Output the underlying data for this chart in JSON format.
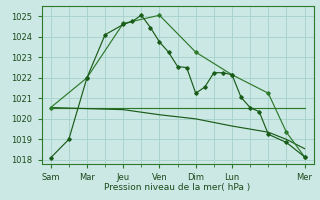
{
  "xlabel": "Pression niveau de la mer( hPa )",
  "bg_color": "#cce8e4",
  "grid_color": "#aad4ce",
  "line_dark": "#1a5c1a",
  "line_mid": "#2d7a2d",
  "ylim": [
    1017.8,
    1025.5
  ],
  "yticks": [
    1018,
    1019,
    1020,
    1021,
    1022,
    1023,
    1024,
    1025
  ],
  "xlim": [
    -0.5,
    14.5
  ],
  "major_x_positions": [
    0,
    2,
    4,
    6,
    8,
    10,
    14
  ],
  "major_x_labels": [
    "Sam",
    "Mar",
    "Jeu",
    "Ven",
    "Dim",
    "Lun",
    "Mer"
  ],
  "minor_x_positions": [
    1,
    3,
    5,
    7,
    9,
    11,
    12,
    13
  ],
  "line1_x": [
    0,
    1,
    2,
    3,
    4,
    4.5,
    5,
    5.5,
    6,
    6.5,
    7,
    7.5,
    8,
    8.5,
    9,
    9.5,
    10,
    10.5,
    11,
    11.5,
    12,
    13,
    14
  ],
  "line1_y": [
    1018.1,
    1019.0,
    1022.0,
    1024.1,
    1024.6,
    1024.75,
    1025.05,
    1024.45,
    1023.75,
    1023.25,
    1022.55,
    1022.5,
    1021.25,
    1021.55,
    1022.25,
    1022.25,
    1022.15,
    1021.05,
    1020.55,
    1020.35,
    1019.25,
    1018.85,
    1018.15
  ],
  "line2_x": [
    0,
    2,
    4,
    6,
    8,
    10,
    12,
    13,
    14
  ],
  "line2_y": [
    1020.55,
    1020.5,
    1020.45,
    1020.2,
    1020.0,
    1019.65,
    1019.35,
    1019.0,
    1018.55
  ],
  "line3_x": [
    0,
    14
  ],
  "line3_y": [
    1020.55,
    1020.55
  ],
  "line4_x": [
    0,
    2,
    4,
    6,
    8,
    10,
    12,
    13,
    14
  ],
  "line4_y": [
    1020.55,
    1022.0,
    1024.65,
    1025.05,
    1023.25,
    1022.15,
    1021.25,
    1019.35,
    1018.15
  ]
}
